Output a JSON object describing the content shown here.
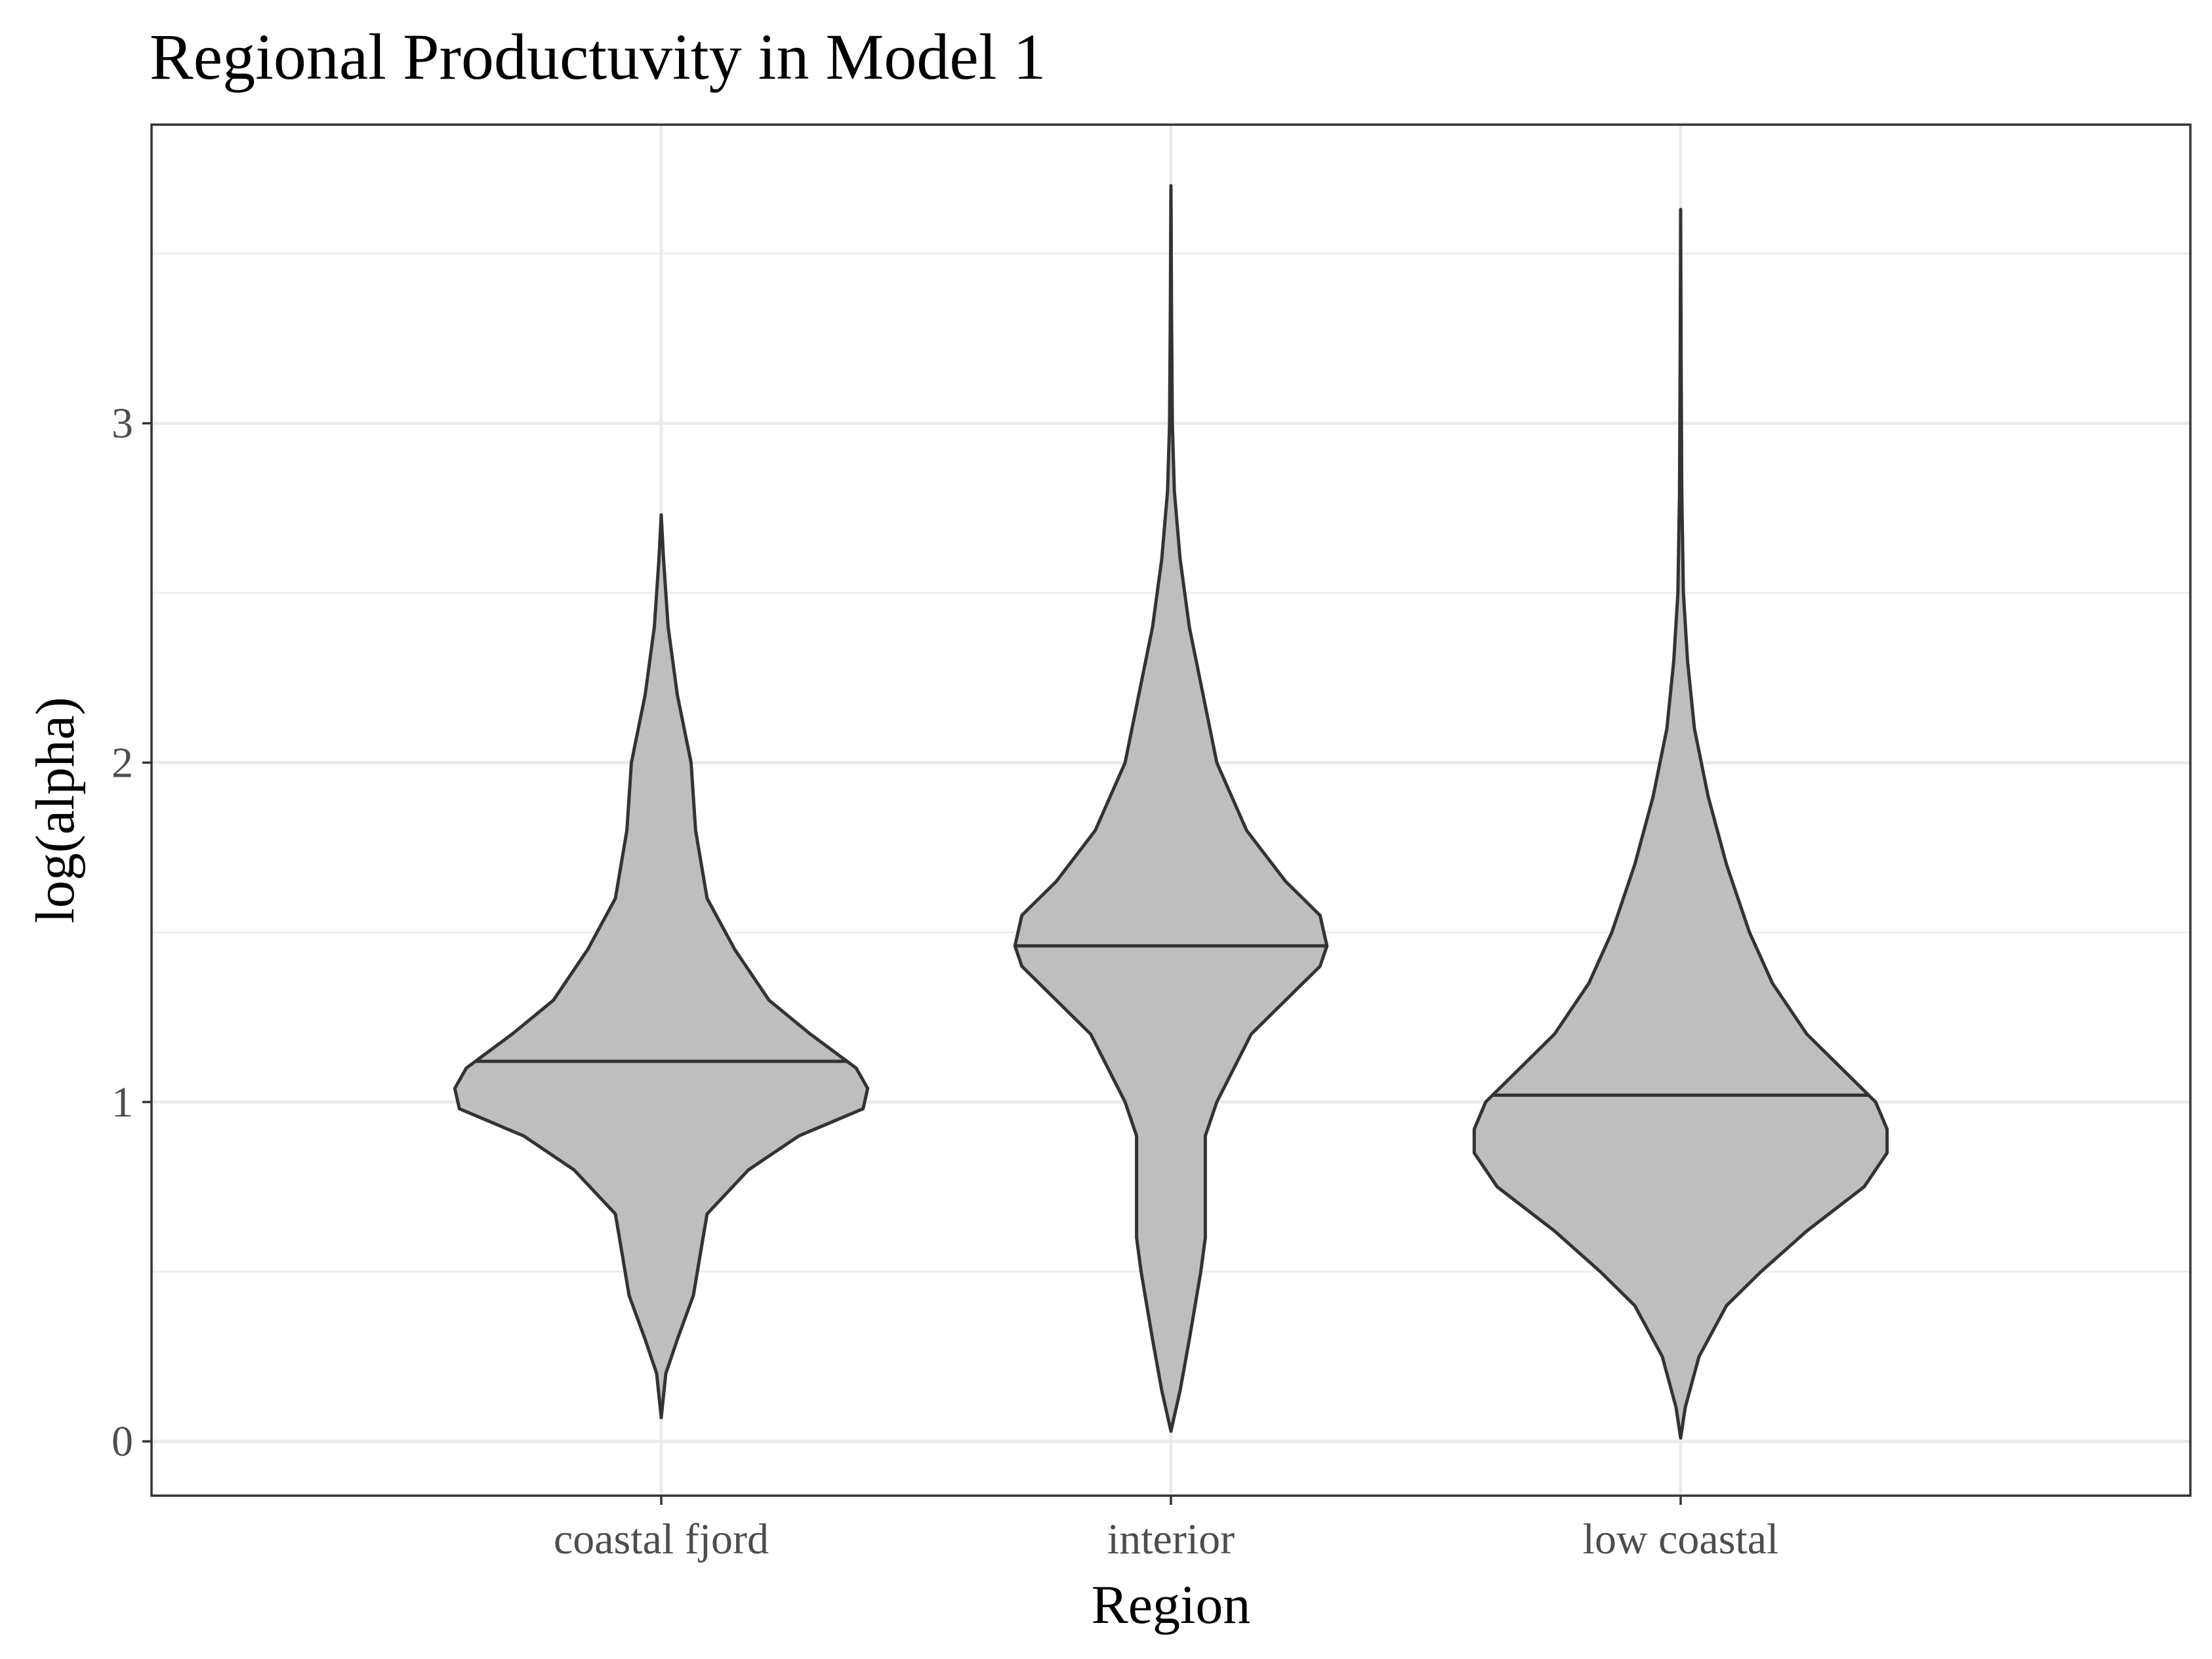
{
  "chart_data": {
    "type": "violin",
    "title": "Regional Productuvity in Model 1",
    "xlabel": "Region",
    "ylabel": "log(alpha)",
    "categories": [
      "coastal fjord",
      "interior",
      "low coastal"
    ],
    "ylim": [
      -0.16,
      3.88
    ],
    "yticks": [
      0,
      1,
      2,
      3
    ],
    "grid": true,
    "legend": "none",
    "fill_color": "#bebebe",
    "outline_color": "#333333",
    "violins": [
      {
        "category": "coastal fjord",
        "min": 0.07,
        "max": 2.73,
        "median_line": 1.12,
        "profile": [
          [
            0.07,
            0.0
          ],
          [
            0.2,
            0.02
          ],
          [
            0.3,
            0.07
          ],
          [
            0.43,
            0.14
          ],
          [
            0.55,
            0.17
          ],
          [
            0.67,
            0.2
          ],
          [
            0.8,
            0.38
          ],
          [
            0.9,
            0.6
          ],
          [
            0.98,
            0.88
          ],
          [
            1.04,
            0.9
          ],
          [
            1.1,
            0.85
          ],
          [
            1.2,
            0.65
          ],
          [
            1.3,
            0.47
          ],
          [
            1.45,
            0.32
          ],
          [
            1.6,
            0.2
          ],
          [
            1.8,
            0.15
          ],
          [
            2.0,
            0.13
          ],
          [
            2.2,
            0.07
          ],
          [
            2.4,
            0.03
          ],
          [
            2.6,
            0.01
          ],
          [
            2.73,
            0.0
          ]
        ]
      },
      {
        "category": "interior",
        "min": 0.03,
        "max": 3.7,
        "median_line": 1.46,
        "profile": [
          [
            0.03,
            0.0
          ],
          [
            0.15,
            0.04
          ],
          [
            0.3,
            0.08
          ],
          [
            0.5,
            0.13
          ],
          [
            0.6,
            0.15
          ],
          [
            0.75,
            0.15
          ],
          [
            0.9,
            0.15
          ],
          [
            1.0,
            0.2
          ],
          [
            1.2,
            0.35
          ],
          [
            1.3,
            0.5
          ],
          [
            1.4,
            0.65
          ],
          [
            1.46,
            0.68
          ],
          [
            1.55,
            0.65
          ],
          [
            1.65,
            0.5
          ],
          [
            1.8,
            0.33
          ],
          [
            2.0,
            0.2
          ],
          [
            2.2,
            0.14
          ],
          [
            2.4,
            0.08
          ],
          [
            2.6,
            0.04
          ],
          [
            2.8,
            0.015
          ],
          [
            3.0,
            0.006
          ],
          [
            3.3,
            0.003
          ],
          [
            3.7,
            0.0
          ]
        ]
      },
      {
        "category": "low coastal",
        "min": 0.01,
        "max": 3.63,
        "median_line": 1.02,
        "profile": [
          [
            0.01,
            0.0
          ],
          [
            0.1,
            0.02
          ],
          [
            0.25,
            0.08
          ],
          [
            0.4,
            0.2
          ],
          [
            0.5,
            0.35
          ],
          [
            0.62,
            0.55
          ],
          [
            0.75,
            0.8
          ],
          [
            0.85,
            0.9
          ],
          [
            0.92,
            0.9
          ],
          [
            1.0,
            0.85
          ],
          [
            1.1,
            0.7
          ],
          [
            1.2,
            0.55
          ],
          [
            1.35,
            0.4
          ],
          [
            1.5,
            0.3
          ],
          [
            1.7,
            0.2
          ],
          [
            1.9,
            0.12
          ],
          [
            2.1,
            0.06
          ],
          [
            2.3,
            0.03
          ],
          [
            2.5,
            0.012
          ],
          [
            2.8,
            0.005
          ],
          [
            3.2,
            0.002
          ],
          [
            3.63,
            0.0
          ]
        ]
      }
    ]
  }
}
